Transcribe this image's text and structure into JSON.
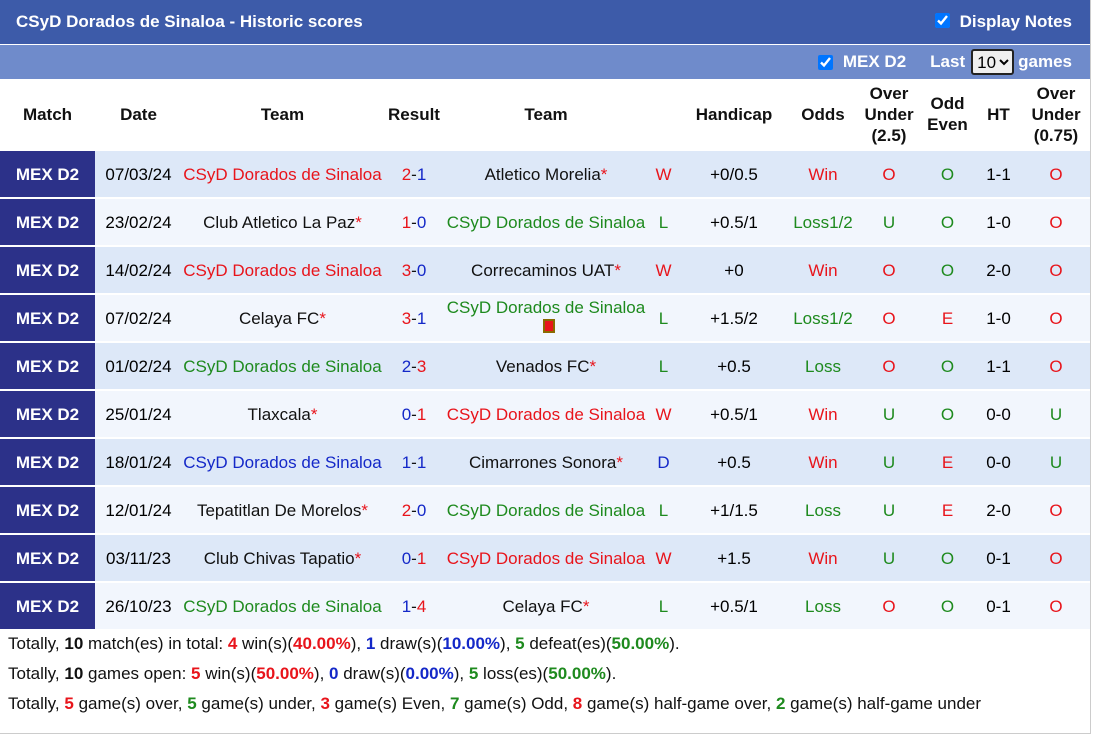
{
  "header": {
    "title": "CSyD Dorados de Sinaloa - Historic scores",
    "display_notes": "Display Notes",
    "league": "MEX D2",
    "last": "Last",
    "count": "10",
    "games": "games"
  },
  "table": {
    "columns": [
      "Match",
      "Date",
      "Team",
      "Result",
      "Team",
      "",
      "Handicap",
      "Odds",
      "Over Under (2.5)",
      "Odd Even",
      "HT",
      "Over Under (0.75)"
    ],
    "rows": [
      {
        "match": "MEX D2",
        "date": "07/03/24",
        "home": {
          "name": "CSyD Dorados de Sinaloa",
          "color": "#e8141b"
        },
        "score": [
          {
            "text": "2",
            "color": "#e8141b"
          },
          {
            "text": "-"
          },
          {
            "text": "1",
            "color": "#1428c8"
          }
        ],
        "away": {
          "name": "Atletico Morelia",
          "mark": "*"
        },
        "outcome": {
          "text": "W",
          "color": "#e8141b"
        },
        "handicap": "+0/0.5",
        "odds": {
          "text": "Win",
          "color": "#e8141b"
        },
        "over_under": {
          "text": "O",
          "color": "#e8141b"
        },
        "odd_even": {
          "text": "O",
          "color": "#1e8a1e"
        },
        "ht": "1-1",
        "over_under_075": {
          "text": "O",
          "color": "#e8141b"
        }
      },
      {
        "match": "MEX D2",
        "date": "23/02/24",
        "home": {
          "name": "Club Atletico La Paz",
          "mark": "*"
        },
        "score": [
          {
            "text": "1",
            "color": "#e8141b"
          },
          {
            "text": "-"
          },
          {
            "text": "0",
            "color": "#1428c8"
          }
        ],
        "away": {
          "name": "CSyD Dorados de Sinaloa",
          "color": "#1e8a1e"
        },
        "outcome": {
          "text": "L",
          "color": "#1e8a1e"
        },
        "handicap": "+0.5/1",
        "odds": {
          "text": "Loss1/2",
          "color": "#1e8a1e"
        },
        "over_under": {
          "text": "U",
          "color": "#1e8a1e"
        },
        "odd_even": {
          "text": "O",
          "color": "#1e8a1e"
        },
        "ht": "1-0",
        "over_under_075": {
          "text": "O",
          "color": "#e8141b"
        }
      },
      {
        "match": "MEX D2",
        "date": "14/02/24",
        "home": {
          "name": "CSyD Dorados de Sinaloa",
          "color": "#e8141b"
        },
        "score": [
          {
            "text": "3",
            "color": "#e8141b"
          },
          {
            "text": "-"
          },
          {
            "text": "0",
            "color": "#1428c8"
          }
        ],
        "away": {
          "name": "Correcaminos UAT",
          "mark": "*"
        },
        "outcome": {
          "text": "W",
          "color": "#e8141b"
        },
        "handicap": "+0",
        "odds": {
          "text": "Win",
          "color": "#e8141b"
        },
        "over_under": {
          "text": "O",
          "color": "#e8141b"
        },
        "odd_even": {
          "text": "O",
          "color": "#1e8a1e"
        },
        "ht": "2-0",
        "over_under_075": {
          "text": "O",
          "color": "#e8141b"
        }
      },
      {
        "match": "MEX D2",
        "date": "07/02/24",
        "home": {
          "name": "Celaya FC",
          "mark": "*"
        },
        "score": [
          {
            "text": "3",
            "color": "#e8141b"
          },
          {
            "text": "-"
          },
          {
            "text": "1",
            "color": "#1428c8"
          }
        ],
        "away": {
          "name": "CSyD Dorados de Sinaloa",
          "color": "#1e8a1e",
          "red_card": true
        },
        "outcome": {
          "text": "L",
          "color": "#1e8a1e"
        },
        "handicap": "+1.5/2",
        "odds": {
          "text": "Loss1/2",
          "color": "#1e8a1e"
        },
        "over_under": {
          "text": "O",
          "color": "#e8141b"
        },
        "odd_even": {
          "text": "E",
          "color": "#e8141b"
        },
        "ht": "1-0",
        "over_under_075": {
          "text": "O",
          "color": "#e8141b"
        }
      },
      {
        "match": "MEX D2",
        "date": "01/02/24",
        "home": {
          "name": "CSyD Dorados de Sinaloa",
          "color": "#1e8a1e"
        },
        "score": [
          {
            "text": "2",
            "color": "#1428c8"
          },
          {
            "text": "-"
          },
          {
            "text": "3",
            "color": "#e8141b"
          }
        ],
        "away": {
          "name": "Venados FC",
          "mark": "*"
        },
        "outcome": {
          "text": "L",
          "color": "#1e8a1e"
        },
        "handicap": "+0.5",
        "odds": {
          "text": "Loss",
          "color": "#1e8a1e"
        },
        "over_under": {
          "text": "O",
          "color": "#e8141b"
        },
        "odd_even": {
          "text": "O",
          "color": "#1e8a1e"
        },
        "ht": "1-1",
        "over_under_075": {
          "text": "O",
          "color": "#e8141b"
        }
      },
      {
        "match": "MEX D2",
        "date": "25/01/24",
        "home": {
          "name": "Tlaxcala",
          "mark": "*"
        },
        "score": [
          {
            "text": "0",
            "color": "#1428c8"
          },
          {
            "text": "-"
          },
          {
            "text": "1",
            "color": "#e8141b"
          }
        ],
        "away": {
          "name": "CSyD Dorados de Sinaloa",
          "color": "#e8141b"
        },
        "outcome": {
          "text": "W",
          "color": "#e8141b"
        },
        "handicap": "+0.5/1",
        "odds": {
          "text": "Win",
          "color": "#e8141b"
        },
        "over_under": {
          "text": "U",
          "color": "#1e8a1e"
        },
        "odd_even": {
          "text": "O",
          "color": "#1e8a1e"
        },
        "ht": "0-0",
        "over_under_075": {
          "text": "U",
          "color": "#1e8a1e"
        }
      },
      {
        "match": "MEX D2",
        "date": "18/01/24",
        "home": {
          "name": "CSyD Dorados de Sinaloa",
          "color": "#1428c8"
        },
        "score": [
          {
            "text": "1",
            "color": "#1428c8"
          },
          {
            "text": "-"
          },
          {
            "text": "1",
            "color": "#1428c8"
          }
        ],
        "away": {
          "name": "Cimarrones Sonora",
          "mark": "*"
        },
        "outcome": {
          "text": "D",
          "color": "#1428c8"
        },
        "handicap": "+0.5",
        "odds": {
          "text": "Win",
          "color": "#e8141b"
        },
        "over_under": {
          "text": "U",
          "color": "#1e8a1e"
        },
        "odd_even": {
          "text": "E",
          "color": "#e8141b"
        },
        "ht": "0-0",
        "over_under_075": {
          "text": "U",
          "color": "#1e8a1e"
        }
      },
      {
        "match": "MEX D2",
        "date": "12/01/24",
        "home": {
          "name": "Tepatitlan De Morelos",
          "mark": "*"
        },
        "score": [
          {
            "text": "2",
            "color": "#e8141b"
          },
          {
            "text": "-"
          },
          {
            "text": "0",
            "color": "#1428c8"
          }
        ],
        "away": {
          "name": "CSyD Dorados de Sinaloa",
          "color": "#1e8a1e"
        },
        "outcome": {
          "text": "L",
          "color": "#1e8a1e"
        },
        "handicap": "+1/1.5",
        "odds": {
          "text": "Loss",
          "color": "#1e8a1e"
        },
        "over_under": {
          "text": "U",
          "color": "#1e8a1e"
        },
        "odd_even": {
          "text": "E",
          "color": "#e8141b"
        },
        "ht": "2-0",
        "over_under_075": {
          "text": "O",
          "color": "#e8141b"
        }
      },
      {
        "match": "MEX D2",
        "date": "03/11/23",
        "home": {
          "name": "Club Chivas Tapatio",
          "mark": "*"
        },
        "score": [
          {
            "text": "0",
            "color": "#1428c8"
          },
          {
            "text": "-"
          },
          {
            "text": "1",
            "color": "#e8141b"
          }
        ],
        "away": {
          "name": "CSyD Dorados de Sinaloa",
          "color": "#e8141b"
        },
        "outcome": {
          "text": "W",
          "color": "#e8141b"
        },
        "handicap": "+1.5",
        "odds": {
          "text": "Win",
          "color": "#e8141b"
        },
        "over_under": {
          "text": "U",
          "color": "#1e8a1e"
        },
        "odd_even": {
          "text": "O",
          "color": "#1e8a1e"
        },
        "ht": "0-1",
        "over_under_075": {
          "text": "O",
          "color": "#e8141b"
        }
      },
      {
        "match": "MEX D2",
        "date": "26/10/23",
        "home": {
          "name": "CSyD Dorados de Sinaloa",
          "color": "#1e8a1e"
        },
        "score": [
          {
            "text": "1",
            "color": "#1428c8"
          },
          {
            "text": "-"
          },
          {
            "text": "4",
            "color": "#e8141b"
          }
        ],
        "away": {
          "name": "Celaya FC",
          "mark": "*"
        },
        "outcome": {
          "text": "L",
          "color": "#1e8a1e"
        },
        "handicap": "+0.5/1",
        "odds": {
          "text": "Loss",
          "color": "#1e8a1e"
        },
        "over_under": {
          "text": "O",
          "color": "#e8141b"
        },
        "odd_even": {
          "text": "O",
          "color": "#1e8a1e"
        },
        "ht": "0-1",
        "over_under_075": {
          "text": "O",
          "color": "#e8141b"
        }
      }
    ]
  },
  "summary": [
    [
      {
        "text": "Totally, "
      },
      {
        "text": "10",
        "bold": true
      },
      {
        "text": " match(es) in total: "
      },
      {
        "text": "4",
        "bold": true,
        "color": "#e8141b"
      },
      {
        "text": " win(s)("
      },
      {
        "text": "40.00%",
        "bold": true,
        "color": "#e8141b"
      },
      {
        "text": "), "
      },
      {
        "text": "1",
        "bold": true,
        "color": "#1428c8"
      },
      {
        "text": " draw(s)("
      },
      {
        "text": "10.00%",
        "bold": true,
        "color": "#1428c8"
      },
      {
        "text": "), "
      },
      {
        "text": "5",
        "bold": true,
        "color": "#1e8a1e"
      },
      {
        "text": " defeat(es)("
      },
      {
        "text": "50.00%",
        "bold": true,
        "color": "#1e8a1e"
      },
      {
        "text": ")."
      }
    ],
    [
      {
        "text": "Totally, "
      },
      {
        "text": "10",
        "bold": true
      },
      {
        "text": " games open: "
      },
      {
        "text": "5",
        "bold": true,
        "color": "#e8141b"
      },
      {
        "text": " win(s)("
      },
      {
        "text": "50.00%",
        "bold": true,
        "color": "#e8141b"
      },
      {
        "text": "), "
      },
      {
        "text": "0",
        "bold": true,
        "color": "#1428c8"
      },
      {
        "text": " draw(s)("
      },
      {
        "text": "0.00%",
        "bold": true,
        "color": "#1428c8"
      },
      {
        "text": "), "
      },
      {
        "text": "5",
        "bold": true,
        "color": "#1e8a1e"
      },
      {
        "text": " loss(es)("
      },
      {
        "text": "50.00%",
        "bold": true,
        "color": "#1e8a1e"
      },
      {
        "text": ")."
      }
    ],
    [
      {
        "text": "Totally, "
      },
      {
        "text": "5",
        "bold": true,
        "color": "#e8141b"
      },
      {
        "text": " game(s) over, "
      },
      {
        "text": "5",
        "bold": true,
        "color": "#1e8a1e"
      },
      {
        "text": " game(s) under, "
      },
      {
        "text": "3",
        "bold": true,
        "color": "#e8141b"
      },
      {
        "text": " game(s) Even, "
      },
      {
        "text": "7",
        "bold": true,
        "color": "#1e8a1e"
      },
      {
        "text": " game(s) Odd, "
      },
      {
        "text": "8",
        "bold": true,
        "color": "#e8141b"
      },
      {
        "text": " game(s) half-game over, "
      },
      {
        "text": "2",
        "bold": true,
        "color": "#1e8a1e"
      },
      {
        "text": " game(s) half-game under"
      }
    ]
  ]
}
